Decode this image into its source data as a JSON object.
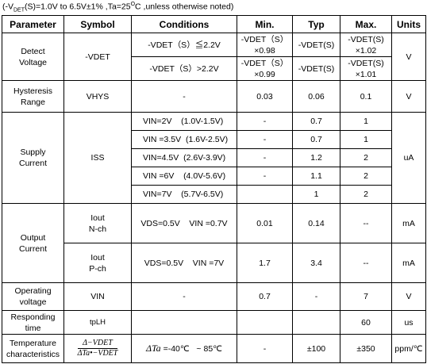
{
  "note": {
    "prefix": "(-V",
    "sub": "DET",
    "mid": "(S)=1.0V to 6.5V±1% ,Ta=25",
    "sup": "O",
    "suffix": "C ,unless otherwise noted)"
  },
  "table": {
    "header": [
      "Parameter",
      "Symbol",
      "Conditions",
      "Min.",
      "Typ",
      "Max.",
      "Units"
    ],
    "rows": [
      [
        "Detect\nVoltage",
        "-VDET",
        "-VDET（S）≦2.2V",
        "-VDET（S）\n×0.98",
        "-VDET(S)",
        "-VDET(S)\n×1.02",
        "V"
      ],
      [
        "-VDET（S）>2.2V",
        "-VDET（S）\n×0.99",
        "-VDET(S)",
        "-VDET(S)\n×1.01"
      ],
      [
        "Hysteresis\nRange",
        "VHYS",
        "-",
        "0.03",
        "0.06",
        "0.1",
        "V"
      ],
      [
        "Supply\nCurrent",
        "ISS",
        "VIN=2V    (1.0V-1.5V)",
        "-",
        "0.7",
        "1",
        "uA"
      ],
      [
        "VIN =3.5V  (1.6V-2.5V)",
        "-",
        "0.7",
        "1"
      ],
      [
        "VIN=4.5V  (2.6V-3.9V)",
        "-",
        "1.2",
        "2"
      ],
      [
        "VIN =6V    (4.0V-5.6V)",
        "-",
        "1.1",
        "2"
      ],
      [
        "VIN=7V    (5.7V-6.5V)",
        "1",
        "2"
      ],
      [
        "Output\nCurrent",
        "Iout\nN-ch",
        "VDS=0.5V    VIN =0.7V",
        "0.01",
        "0.14",
        "--",
        "mA"
      ],
      [
        "Iout\nP-ch",
        "VDS=0.5V    VIN =7V",
        "1.7",
        "3.4",
        "--",
        "mA"
      ],
      [
        "Operating\nvoltage",
        "VIN",
        "-",
        "0.7",
        "-",
        "7",
        "V"
      ],
      [
        "Responding\ntime",
        "tpLH",
        "60",
        "us"
      ],
      [
        "Temperature\ncharacteristics",
        "Δ−VDET",
        "ΔTa•−VDET",
        "ΔTa",
        " =-40℃   ~ 85℃",
        "-",
        "±100",
        "±350",
        "ppm/℃"
      ]
    ]
  }
}
